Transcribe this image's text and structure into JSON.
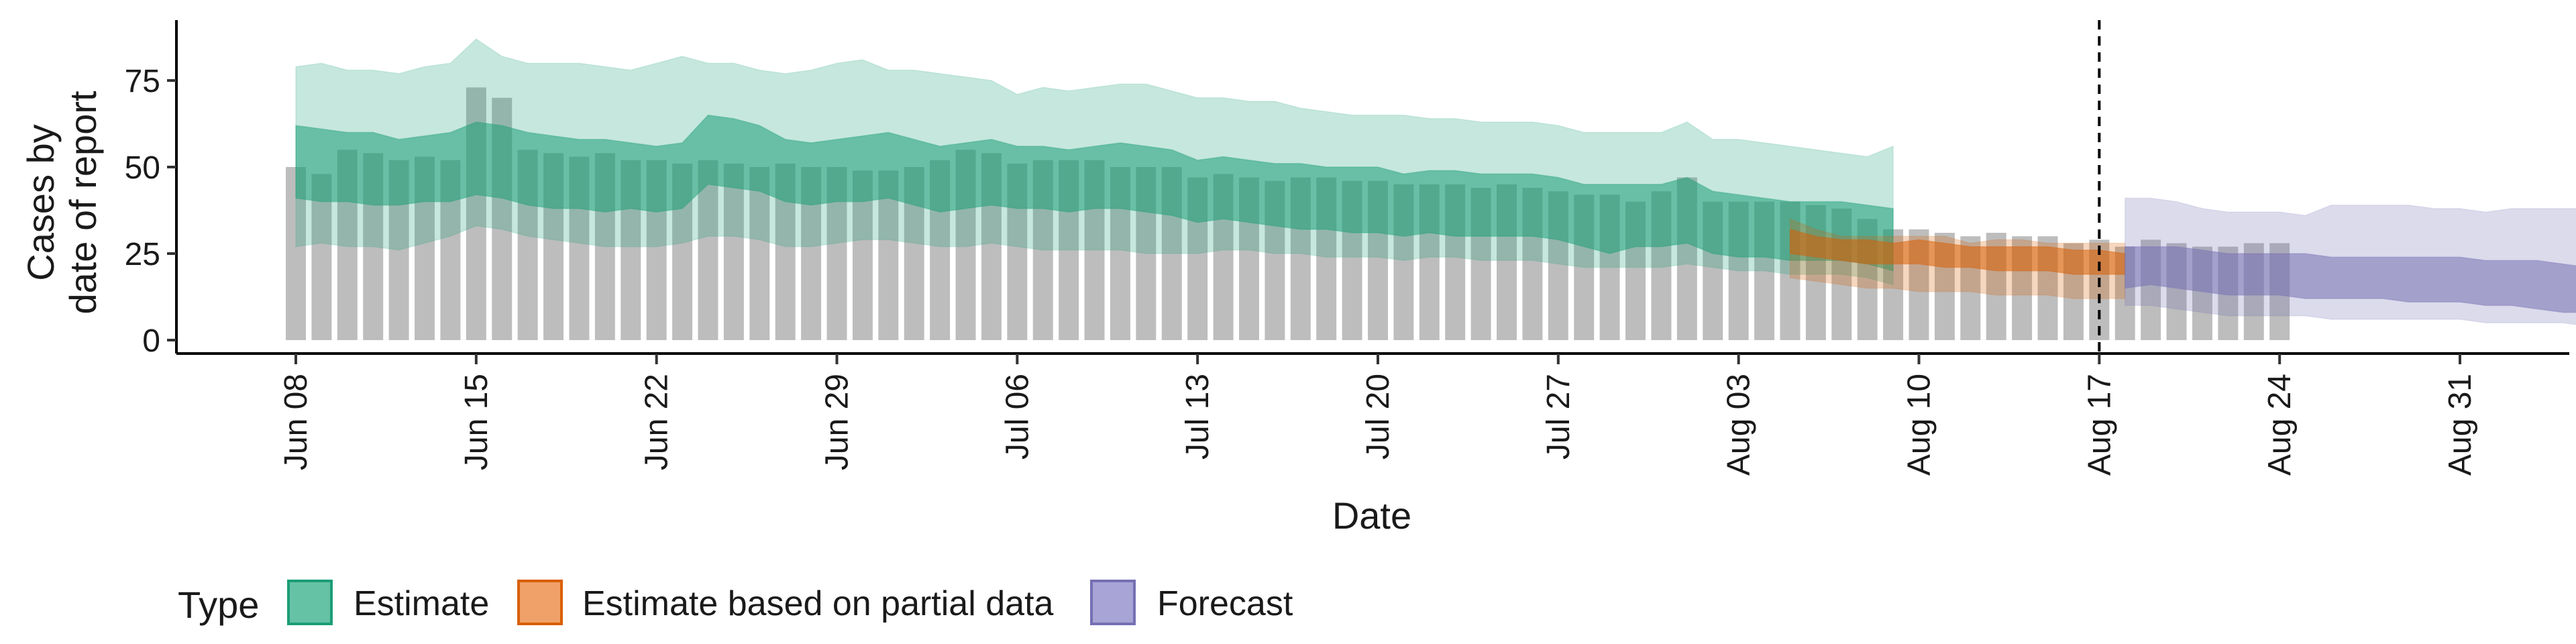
{
  "chart_data": {
    "type": "bar",
    "ylabel_line1": "Cases by",
    "ylabel_line2": "date of report",
    "xlabel": "Date",
    "ylim": [
      -5,
      92
    ],
    "yticks": [
      0,
      25,
      50,
      75
    ],
    "x_start": "2020-06-08",
    "x_end": "2020-08-31",
    "xticks": [
      "Jun 08",
      "Jun 15",
      "Jun 22",
      "Jun 29",
      "Jul 06",
      "Jul 13",
      "Jul 20",
      "Jul 27",
      "Aug 03",
      "Aug 10",
      "Aug 17",
      "Aug 24",
      "Aug 31"
    ],
    "vline_date": "2020-08-17",
    "bars": {
      "start": "2020-06-08",
      "values": [
        50,
        48,
        55,
        54,
        52,
        53,
        52,
        73,
        70,
        55,
        54,
        53,
        54,
        52,
        52,
        51,
        52,
        51,
        50,
        51,
        50,
        50,
        49,
        49,
        50,
        52,
        55,
        54,
        51,
        52,
        52,
        52,
        50,
        50,
        50,
        47,
        48,
        47,
        46,
        47,
        47,
        46,
        46,
        45,
        45,
        45,
        44,
        45,
        44,
        43,
        42,
        42,
        40,
        43,
        47,
        40,
        40,
        40,
        40,
        39,
        38,
        35,
        32,
        32,
        31,
        30,
        31,
        30,
        30,
        28,
        29,
        27,
        29,
        28,
        27,
        27,
        28,
        28
      ]
    },
    "estimate": {
      "start": "2020-06-08",
      "outer_upper": [
        79,
        80,
        78,
        78,
        77,
        79,
        80,
        87,
        82,
        80,
        80,
        80,
        79,
        78,
        80,
        82,
        80,
        80,
        78,
        77,
        78,
        80,
        81,
        78,
        78,
        77,
        76,
        75,
        71,
        73,
        72,
        73,
        74,
        74,
        72,
        70,
        70,
        69,
        69,
        67,
        66,
        65,
        65,
        65,
        64,
        64,
        63,
        63,
        63,
        62,
        60,
        60,
        60,
        60,
        63,
        58,
        58,
        57,
        56,
        55,
        54,
        53,
        56
      ],
      "inner_upper": [
        62,
        61,
        60,
        60,
        58,
        59,
        60,
        63,
        62,
        60,
        59,
        58,
        58,
        57,
        56,
        57,
        65,
        64,
        62,
        58,
        57,
        58,
        59,
        60,
        58,
        56,
        57,
        58,
        56,
        56,
        55,
        56,
        57,
        56,
        55,
        52,
        53,
        52,
        51,
        51,
        50,
        50,
        50,
        48,
        49,
        49,
        48,
        48,
        48,
        47,
        45,
        45,
        45,
        45,
        47,
        43,
        42,
        41,
        40,
        40,
        40,
        39,
        38
      ],
      "inner_lower": [
        41,
        40,
        40,
        39,
        39,
        40,
        40,
        42,
        41,
        39,
        38,
        38,
        37,
        38,
        37,
        38,
        45,
        44,
        43,
        40,
        39,
        40,
        40,
        41,
        39,
        37,
        38,
        39,
        38,
        38,
        37,
        38,
        38,
        37,
        36,
        34,
        35,
        34,
        33,
        32,
        32,
        31,
        31,
        30,
        31,
        30,
        30,
        30,
        30,
        29,
        27,
        25,
        27,
        27,
        28,
        25,
        24,
        24,
        23,
        23,
        23,
        22,
        20
      ],
      "outer_lower": [
        27,
        28,
        27,
        27,
        26,
        28,
        30,
        33,
        32,
        30,
        29,
        28,
        27,
        27,
        27,
        28,
        30,
        30,
        29,
        27,
        27,
        28,
        29,
        29,
        28,
        27,
        27,
        28,
        27,
        26,
        26,
        26,
        26,
        25,
        25,
        25,
        26,
        26,
        25,
        25,
        24,
        24,
        24,
        23,
        24,
        24,
        23,
        23,
        23,
        22,
        21,
        21,
        21,
        21,
        22,
        21,
        20,
        20,
        19,
        19,
        19,
        18,
        16
      ]
    },
    "partial": {
      "start": "2020-08-05",
      "outer_upper": [
        35,
        32,
        30,
        30,
        30,
        30,
        30,
        28,
        29,
        29,
        28,
        28,
        28,
        28
      ],
      "inner_upper": [
        32,
        30,
        29,
        29,
        28,
        29,
        28,
        27,
        27,
        27,
        27,
        26,
        26,
        25
      ],
      "inner_lower": [
        25,
        24,
        23,
        22,
        22,
        22,
        21,
        21,
        20,
        20,
        20,
        19,
        19,
        19
      ],
      "outer_lower": [
        18,
        17,
        16,
        15,
        15,
        14,
        14,
        14,
        13,
        13,
        13,
        12,
        12,
        12
      ]
    },
    "forecast": {
      "start": "2020-08-18",
      "outer_upper": [
        41,
        41,
        40,
        38,
        37,
        37,
        37,
        36,
        39,
        39,
        39,
        39,
        38,
        38,
        37,
        38,
        38,
        38,
        38,
        38,
        41
      ],
      "inner_upper": [
        27,
        27,
        27,
        26,
        25,
        25,
        25,
        25,
        24,
        24,
        24,
        24,
        24,
        24,
        23,
        23,
        23,
        22,
        21,
        21,
        21
      ],
      "inner_lower": [
        15,
        16,
        15,
        14,
        13,
        13,
        13,
        12,
        12,
        12,
        12,
        11,
        11,
        11,
        10,
        10,
        9,
        8,
        8,
        8,
        8
      ],
      "outer_lower": [
        10,
        10,
        9,
        8,
        7,
        7,
        7,
        7,
        6,
        6,
        6,
        6,
        6,
        6,
        5,
        5,
        5,
        5,
        4,
        4,
        5
      ]
    },
    "legend": {
      "title": "Type",
      "position": "bottom",
      "items": [
        {
          "label": "Estimate",
          "fill": "#66c2a5",
          "border": "#1b9e77"
        },
        {
          "label": "Estimate based on partial data",
          "fill": "#f0a069",
          "border": "#d95f02"
        },
        {
          "label": "Forecast",
          "fill": "#a8a4d6",
          "border": "#7570b3"
        }
      ]
    },
    "colors": {
      "bars": "#bdbdbd",
      "estimate": "#1b9e77",
      "partial": "#d95f02",
      "forecast": "#7570b3",
      "axis": "#000000"
    }
  }
}
